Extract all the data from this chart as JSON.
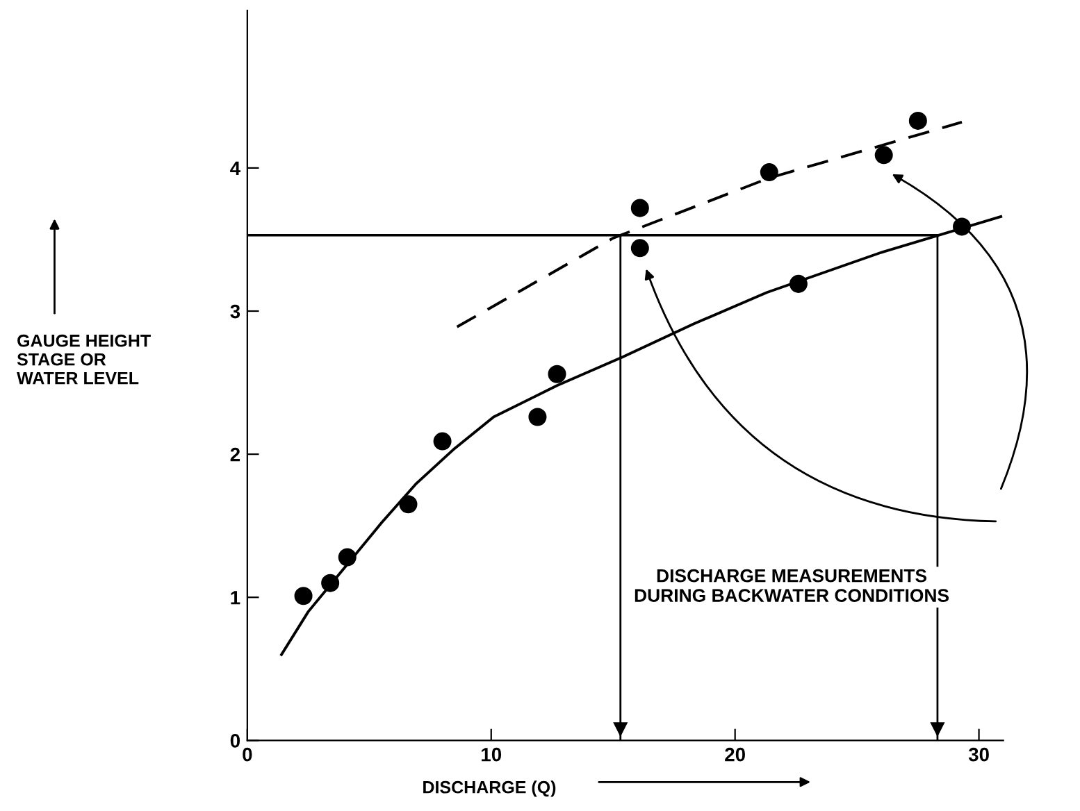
{
  "chart_data": {
    "type": "scatter",
    "xlabel": "DISCHARGE (Q)",
    "ylabel": "GAUGE HEIGHT\nSTAGE OR\nWATER LEVEL",
    "xlim": [
      0,
      31
    ],
    "ylim": [
      0,
      5.1
    ],
    "xticks": [
      0,
      10,
      20,
      30
    ],
    "yticks": [
      0,
      1,
      2,
      3,
      4
    ],
    "grid": false,
    "series": [
      {
        "color": "#000000",
        "marker": "circle",
        "x": [
          2.3,
          3.4,
          4.1,
          6.6,
          8.0,
          11.9,
          12.7,
          16.1,
          16.1,
          21.4,
          22.6,
          26.1,
          27.5,
          29.3
        ],
        "values": [
          1.01,
          1.1,
          1.28,
          1.65,
          2.09,
          2.26,
          2.56,
          3.72,
          3.44,
          3.97,
          3.19,
          4.09,
          4.33,
          3.59
        ]
      },
      {
        "type": "line",
        "color": "#000000",
        "line_style": "solid",
        "marker": "none",
        "x": [
          1.4,
          2.5,
          4.1,
          5.5,
          6.9,
          8.5,
          10.1,
          12.7,
          15.4,
          18.3,
          21.3,
          26.0,
          30.9
        ],
        "values": [
          0.6,
          0.9,
          1.23,
          1.52,
          1.79,
          2.04,
          2.26,
          2.48,
          2.68,
          2.91,
          3.13,
          3.41,
          3.66
        ]
      },
      {
        "type": "line",
        "color": "#000000",
        "line_style": "dashed",
        "marker": "none",
        "x": [
          8.6,
          15.0,
          21.4,
          29.3
        ],
        "values": [
          2.89,
          3.51,
          3.93,
          4.32
        ]
      }
    ],
    "ref_lines": [
      {
        "axis": "y",
        "value": 3.53
      },
      {
        "axis": "x",
        "value": 15.3
      },
      {
        "axis": "x",
        "value": 28.3
      }
    ],
    "annotations": [
      "DISCHARGE MEASUREMENTS\nDURING BACKWATER CONDITIONS"
    ]
  }
}
